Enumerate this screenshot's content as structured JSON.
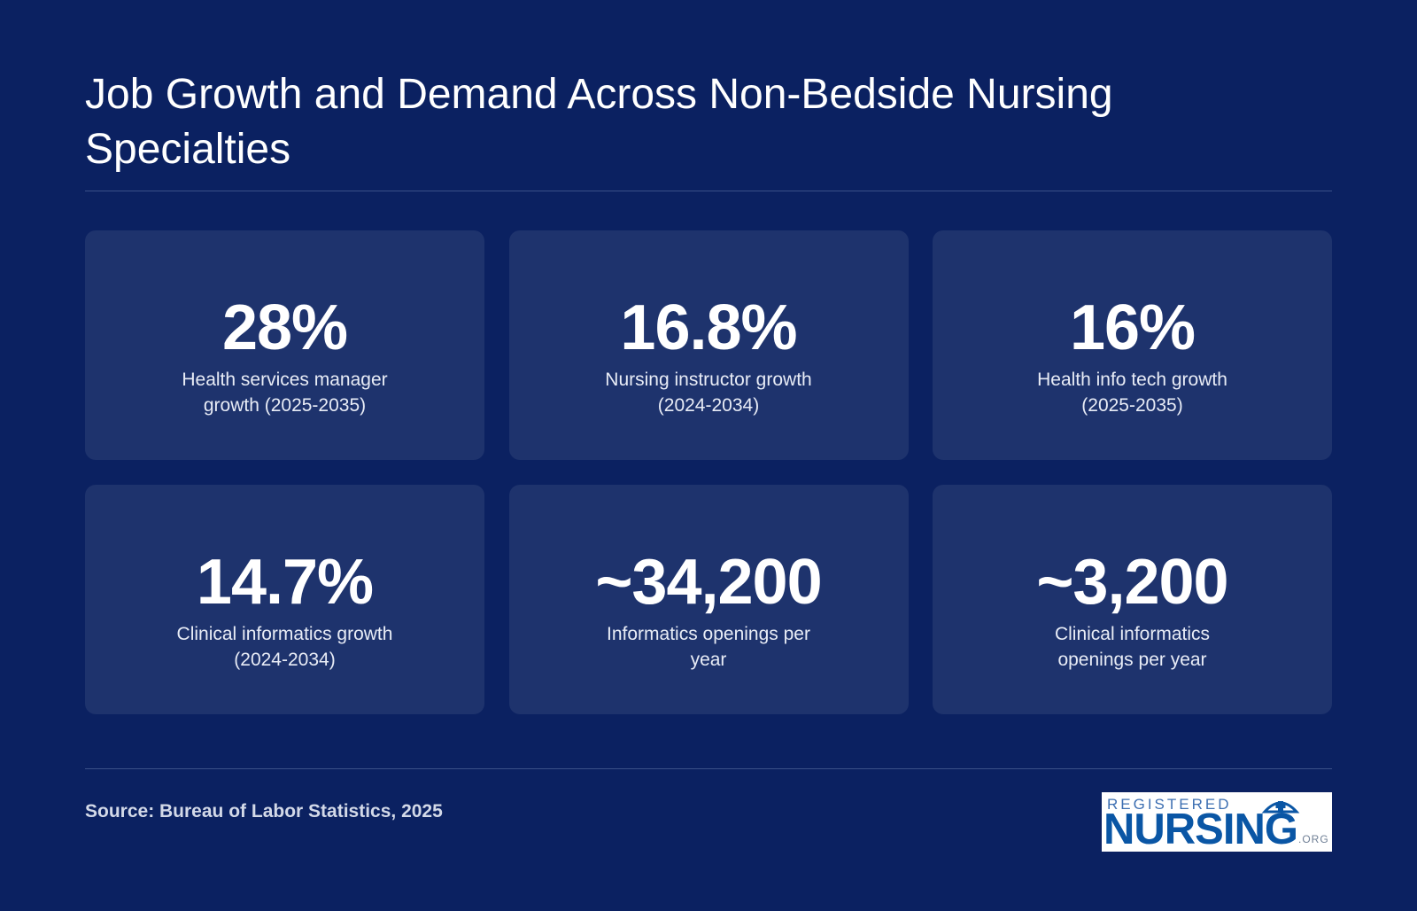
{
  "header": {
    "title": "Job Growth and Demand Across Non-Bedside Nursing Specialties"
  },
  "stats": [
    {
      "value": "28%",
      "label": "Health services manager growth (2025-2035)"
    },
    {
      "value": "16.8%",
      "label": "Nursing instructor growth (2024-2034)"
    },
    {
      "value": "16%",
      "label": "Health info tech growth (2025-2035)"
    },
    {
      "value": "14.7%",
      "label": "Clinical informatics growth (2024-2034)"
    },
    {
      "value": "~34,200",
      "label": "Informatics openings per year"
    },
    {
      "value": "~3,200",
      "label": "Clinical informatics openings per year"
    }
  ],
  "footer": {
    "source": "Source: Bureau of Labor Statistics, 2025",
    "logo": {
      "top_text": "REGISTERED",
      "main_text": "NURSING",
      "suffix": ".ORG",
      "icon": "nurse-cap-icon"
    }
  },
  "colors": {
    "background": "#0b2161",
    "card": "#1e336d",
    "logo_blue": "#0a56a5"
  }
}
